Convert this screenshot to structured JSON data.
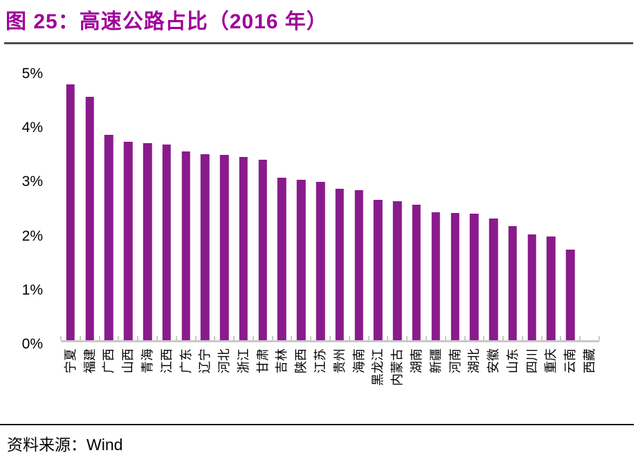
{
  "title": "图 25：高速公路占比（2016 年）",
  "source": {
    "prefix": "资料来源：",
    "value": "Wind"
  },
  "colors": {
    "bar": "#891B8C",
    "title": "#A0009A",
    "axis": "#C8C8C8",
    "title_rule": "#4D4D4D",
    "source_rule": "#151515"
  },
  "chart_data": {
    "type": "bar",
    "title": "高速公路占比（2016 年）",
    "figure_number": "图 25",
    "categories": [
      "宁夏",
      "福建",
      "广西",
      "山西",
      "青海",
      "江西",
      "广东",
      "辽宁",
      "河北",
      "浙江",
      "甘肃",
      "吉林",
      "陕西",
      "江苏",
      "贵州",
      "海南",
      "黑龙江",
      "内蒙古",
      "湖南",
      "新疆",
      "河南",
      "湖北",
      "安徽",
      "山东",
      "四川",
      "重庆",
      "云南",
      "西藏"
    ],
    "values": [
      4.76,
      4.53,
      3.82,
      3.7,
      3.67,
      3.64,
      3.52,
      3.47,
      3.45,
      3.41,
      3.36,
      3.03,
      2.99,
      2.95,
      2.83,
      2.8,
      2.62,
      2.6,
      2.53,
      2.39,
      2.38,
      2.36,
      2.28,
      2.13,
      1.98,
      1.94,
      1.7,
      0
    ],
    "unit": "%",
    "xlabel": "",
    "ylabel": "",
    "ylim": [
      0,
      5
    ],
    "yticks": [
      "0%",
      "1%",
      "2%",
      "3%",
      "4%",
      "5%"
    ],
    "grid": false,
    "legend": null,
    "x_label_rotation_deg": -90
  }
}
